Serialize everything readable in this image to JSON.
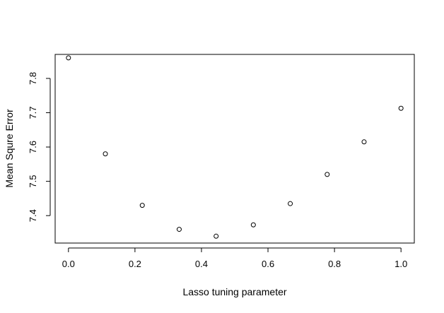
{
  "chart_data": {
    "type": "scatter",
    "title": "",
    "xlabel": "Lasso tuning parameter",
    "ylabel": "Mean Squre Error",
    "xlim": [
      -0.04,
      1.04
    ],
    "ylim": [
      7.32,
      7.87
    ],
    "x_ticks": [
      0.0,
      0.2,
      0.4,
      0.6,
      0.8,
      1.0
    ],
    "x_tick_labels": [
      "0.0",
      "0.2",
      "0.4",
      "0.6",
      "0.8",
      "1.0"
    ],
    "y_ticks": [
      7.4,
      7.5,
      7.6,
      7.7,
      7.8
    ],
    "y_tick_labels": [
      "7.4",
      "7.5",
      "7.6",
      "7.7",
      "7.8"
    ],
    "grid": false,
    "point_marker": "open-circle",
    "points": [
      {
        "x": 0.0,
        "y": 7.86
      },
      {
        "x": 0.111,
        "y": 7.58
      },
      {
        "x": 0.222,
        "y": 7.43
      },
      {
        "x": 0.333,
        "y": 7.36
      },
      {
        "x": 0.444,
        "y": 7.34
      },
      {
        "x": 0.556,
        "y": 7.373
      },
      {
        "x": 0.667,
        "y": 7.435
      },
      {
        "x": 0.778,
        "y": 7.52
      },
      {
        "x": 0.889,
        "y": 7.615
      },
      {
        "x": 1.0,
        "y": 7.713
      }
    ]
  }
}
